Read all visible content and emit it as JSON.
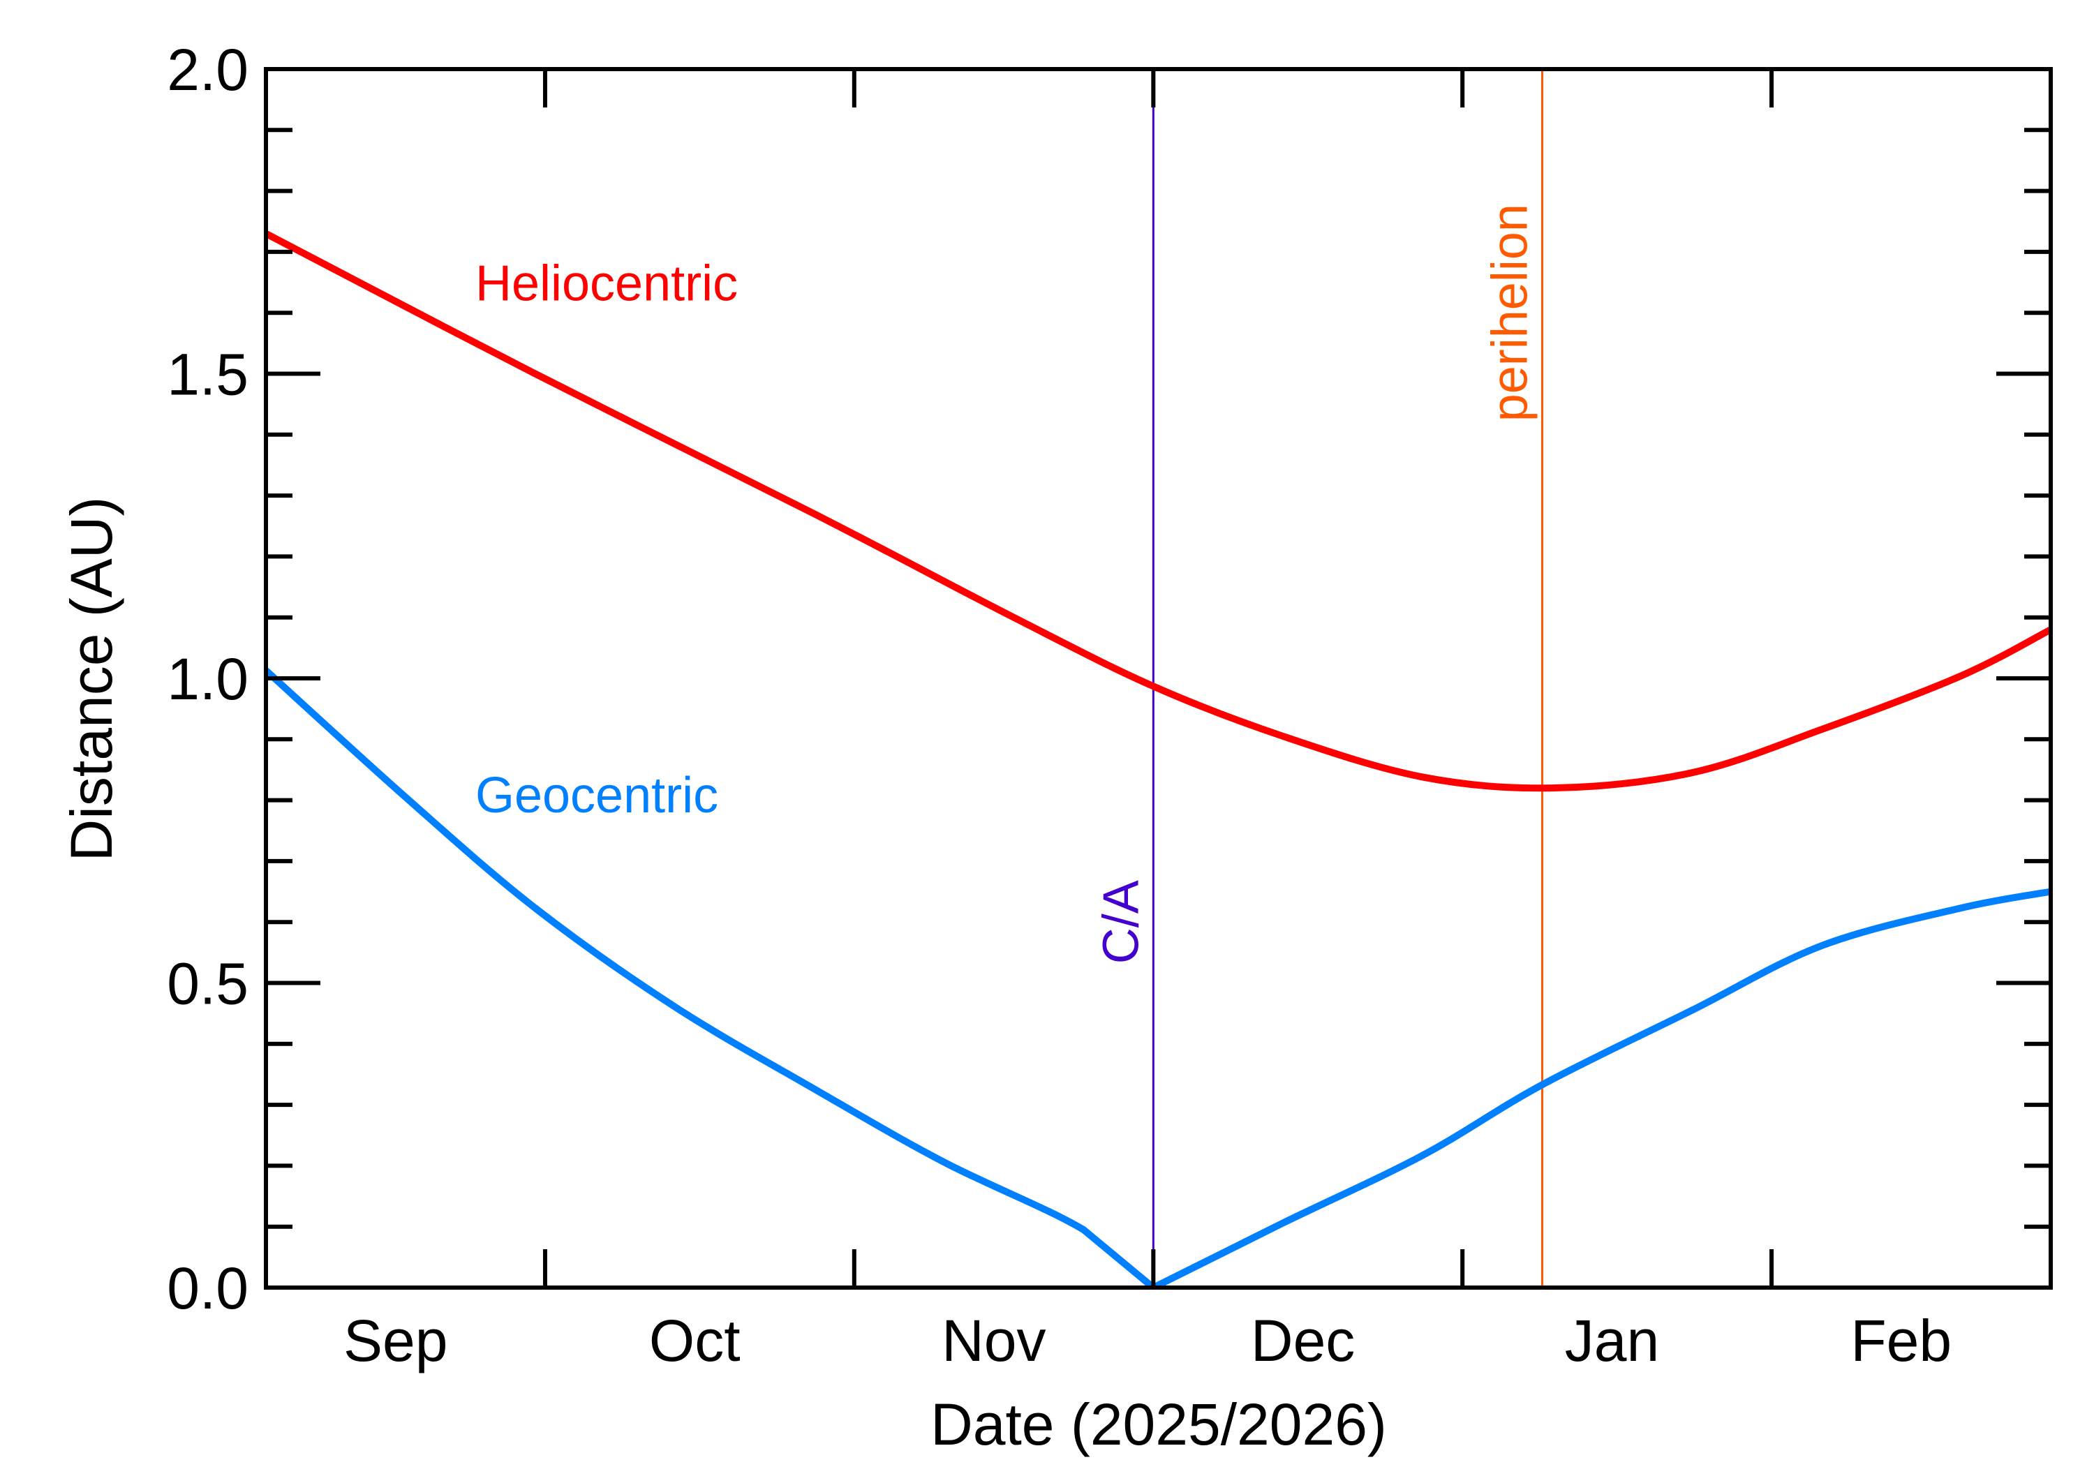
{
  "chart_data": {
    "type": "line",
    "title": "",
    "xlabel": "Date (2025/2026)",
    "ylabel": "Distance (AU)",
    "xlim": [
      "2025-09-03",
      "2026-03-01"
    ],
    "ylim": [
      0,
      2
    ],
    "grid": false,
    "yticks": [
      0,
      0.5,
      1,
      1.5,
      2
    ],
    "ytick_labels": [
      "0.0",
      "0.5",
      "1.0",
      "1.5",
      "2.0"
    ],
    "yminor_step": 0.1,
    "xticks": [
      "2025-10-01",
      "2025-11-01",
      "2025-12-01",
      "2026-01-01",
      "2026-02-01",
      "2026-03-01"
    ],
    "month_labels": [
      {
        "label": "Sep",
        "date": "2025-09-16"
      },
      {
        "label": "Oct",
        "date": "2025-10-16"
      },
      {
        "label": "Nov",
        "date": "2025-11-15"
      },
      {
        "label": "Dec",
        "date": "2025-12-16"
      },
      {
        "label": "Jan",
        "date": "2026-01-16"
      },
      {
        "label": "Feb",
        "date": "2026-02-14"
      }
    ],
    "series": [
      {
        "name": "Heliocentric",
        "color": "#ff0000",
        "label_at": {
          "date": "2025-09-24",
          "value": 1.62
        },
        "points": [
          [
            "2025-09-03",
            1.73
          ],
          [
            "2025-09-30",
            1.5
          ],
          [
            "2025-10-28",
            1.27
          ],
          [
            "2025-11-17",
            1.1
          ],
          [
            "2025-12-01",
            0.987
          ],
          [
            "2025-12-14",
            0.905
          ],
          [
            "2025-12-28",
            0.838
          ],
          [
            "2026-01-10",
            0.82
          ],
          [
            "2026-01-24",
            0.845
          ],
          [
            "2026-02-06",
            0.916
          ],
          [
            "2026-02-20",
            1.004
          ],
          [
            "2026-03-01",
            1.08
          ]
        ]
      },
      {
        "name": "Geocentric",
        "color": "#0080ff",
        "label_at": {
          "date": "2025-09-24",
          "value": 0.78
        },
        "points": [
          [
            "2025-09-03",
            1.013
          ],
          [
            "2025-09-17",
            0.805
          ],
          [
            "2025-09-30",
            0.623
          ],
          [
            "2025-10-14",
            0.461
          ],
          [
            "2025-10-28",
            0.326
          ],
          [
            "2025-11-10",
            0.206
          ],
          [
            "2025-11-24",
            0.095
          ],
          [
            "2025-12-01",
            0.0
          ],
          [
            "2025-12-14",
            0.106
          ],
          [
            "2025-12-28",
            0.217
          ],
          [
            "2026-01-09",
            0.333
          ],
          [
            "2026-01-24",
            0.455
          ],
          [
            "2026-02-06",
            0.561
          ],
          [
            "2026-02-20",
            0.623
          ],
          [
            "2026-03-01",
            0.65
          ]
        ]
      }
    ],
    "annotations": [
      {
        "label": "C/A",
        "date": "2025-12-01",
        "color": "#4400cc",
        "label_value": 0.6
      },
      {
        "label": "perihelion",
        "date": "2026-01-09",
        "color": "#ff5a00",
        "label_value": 1.6
      }
    ]
  }
}
